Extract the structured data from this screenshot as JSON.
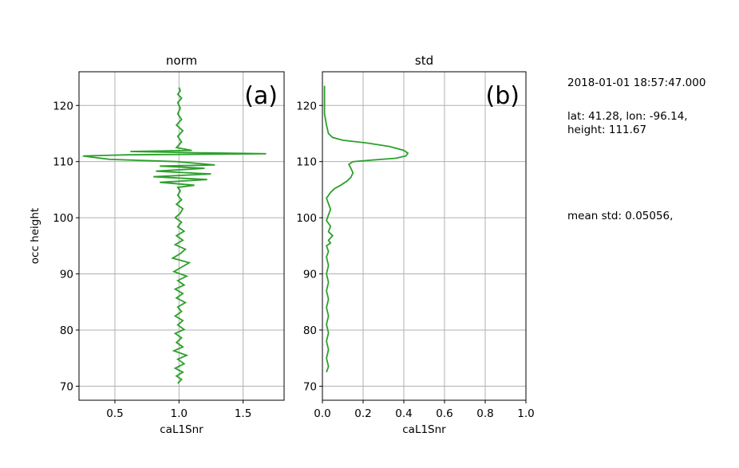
{
  "side_info": {
    "timestamp": "2018-01-01 18:57:47.000",
    "location_line1": "lat: 41.28, lon: -96.14,",
    "location_line2": "height: 111.67",
    "mean_std": "mean std: 0.05056,"
  },
  "colors": {
    "line": "#2ca02c",
    "grid": "#b0b0b0",
    "axis": "#000000"
  },
  "chart_data": [
    {
      "type": "line",
      "title": "norm",
      "panel_label": "(a)",
      "xlabel": "caL1Snr",
      "ylabel": "occ height",
      "xlim": [
        0.22,
        1.82
      ],
      "ylim": [
        67.5,
        126.0
      ],
      "xticks": [
        0.5,
        1.0,
        1.5
      ],
      "xtick_labels": [
        "0.5",
        "1.0",
        "1.5"
      ],
      "yticks": [
        70,
        80,
        90,
        100,
        110,
        120
      ],
      "ytick_labels": [
        "70",
        "80",
        "90",
        "100",
        "110",
        "120"
      ],
      "grid": true,
      "series": [
        {
          "x": [
            0.99,
            1.02,
            0.98,
            1.03,
            0.97,
            1.04,
            0.99,
            1.06,
            0.96,
            1.03,
            0.98,
            1.02,
            0.97,
            1.04,
            0.99,
            1.03,
            0.97,
            1.02,
            0.99,
            1.05,
            0.98,
            1.03,
            0.97,
            1.04,
            0.99,
            1.06,
            0.96,
            1.02,
            1.08,
            0.95,
            1.01,
            1.05,
            0.97,
            1.03,
            0.98,
            1.04,
            0.99,
            1.02,
            0.97,
            1.01,
            1.03,
            0.98,
            1.02,
            0.99,
            1.01,
            0.99,
            1.12,
            0.85,
            1.22,
            0.8,
            1.25,
            0.82,
            1.2,
            0.85,
            1.28,
            0.98,
            0.46,
            0.25,
            0.6,
            1.68,
            1.05,
            0.62,
            1.1,
            0.98,
            1.02,
            0.99,
            1.03,
            0.98,
            1.02,
            0.99,
            1.01,
            0.99,
            1.02,
            0.99,
            1.01,
            1.0
          ],
          "y": [
            70.5,
            71.2,
            71.8,
            72.5,
            73.2,
            74.0,
            74.8,
            75.5,
            76.3,
            77.0,
            77.8,
            78.6,
            79.4,
            80.1,
            80.9,
            81.7,
            82.5,
            83.3,
            84.1,
            84.9,
            85.7,
            86.5,
            87.3,
            88.0,
            88.8,
            89.6,
            90.4,
            91.2,
            92.0,
            92.8,
            93.6,
            94.4,
            95.2,
            96.0,
            96.8,
            97.6,
            98.4,
            99.2,
            100.0,
            100.8,
            101.6,
            102.4,
            103.2,
            104.0,
            104.8,
            105.4,
            105.8,
            106.3,
            106.8,
            107.3,
            107.8,
            108.3,
            108.8,
            109.2,
            109.4,
            110.0,
            110.4,
            111.0,
            111.2,
            111.4,
            111.6,
            111.8,
            112.0,
            112.5,
            113.5,
            114.5,
            115.5,
            116.5,
            117.5,
            118.5,
            119.5,
            120.5,
            121.3,
            122.0,
            122.6,
            123.2
          ]
        }
      ]
    },
    {
      "type": "line",
      "title": "std",
      "panel_label": "(b)",
      "xlabel": "caL1Snr",
      "ylabel": "",
      "xlim": [
        0.0,
        1.0
      ],
      "ylim": [
        67.5,
        126.0
      ],
      "xticks": [
        0.0,
        0.2,
        0.4,
        0.6,
        0.8,
        1.0
      ],
      "xtick_labels": [
        "0.0",
        "0.2",
        "0.4",
        "0.6",
        "0.8",
        "1.0"
      ],
      "yticks": [
        70,
        80,
        90,
        100,
        110,
        120
      ],
      "ytick_labels": [
        "70",
        "80",
        "90",
        "100",
        "110",
        "120"
      ],
      "grid": true,
      "series": [
        {
          "x": [
            0.02,
            0.03,
            0.02,
            0.03,
            0.02,
            0.03,
            0.02,
            0.03,
            0.02,
            0.03,
            0.02,
            0.03,
            0.02,
            0.03,
            0.02,
            0.03,
            0.02,
            0.04,
            0.03,
            0.05,
            0.03,
            0.04,
            0.02,
            0.03,
            0.04,
            0.03,
            0.02,
            0.04,
            0.06,
            0.09,
            0.12,
            0.14,
            0.15,
            0.14,
            0.13,
            0.15,
            0.25,
            0.36,
            0.41,
            0.42,
            0.4,
            0.33,
            0.22,
            0.1,
            0.05,
            0.03,
            0.02,
            0.01,
            0.01,
            0.01
          ],
          "y": [
            72.5,
            73.5,
            75.0,
            76.5,
            78.0,
            79.5,
            81.0,
            82.5,
            84.0,
            85.5,
            87.0,
            88.5,
            90.0,
            91.5,
            93.0,
            94.0,
            95.0,
            95.5,
            96.0,
            96.8,
            97.5,
            98.5,
            99.5,
            100.5,
            101.5,
            102.5,
            103.5,
            104.5,
            105.2,
            105.8,
            106.5,
            107.2,
            108.0,
            108.8,
            109.5,
            110.0,
            110.3,
            110.6,
            111.0,
            111.5,
            112.0,
            112.7,
            113.3,
            113.8,
            114.3,
            115.0,
            116.5,
            118.5,
            120.5,
            123.5
          ]
        }
      ]
    }
  ]
}
